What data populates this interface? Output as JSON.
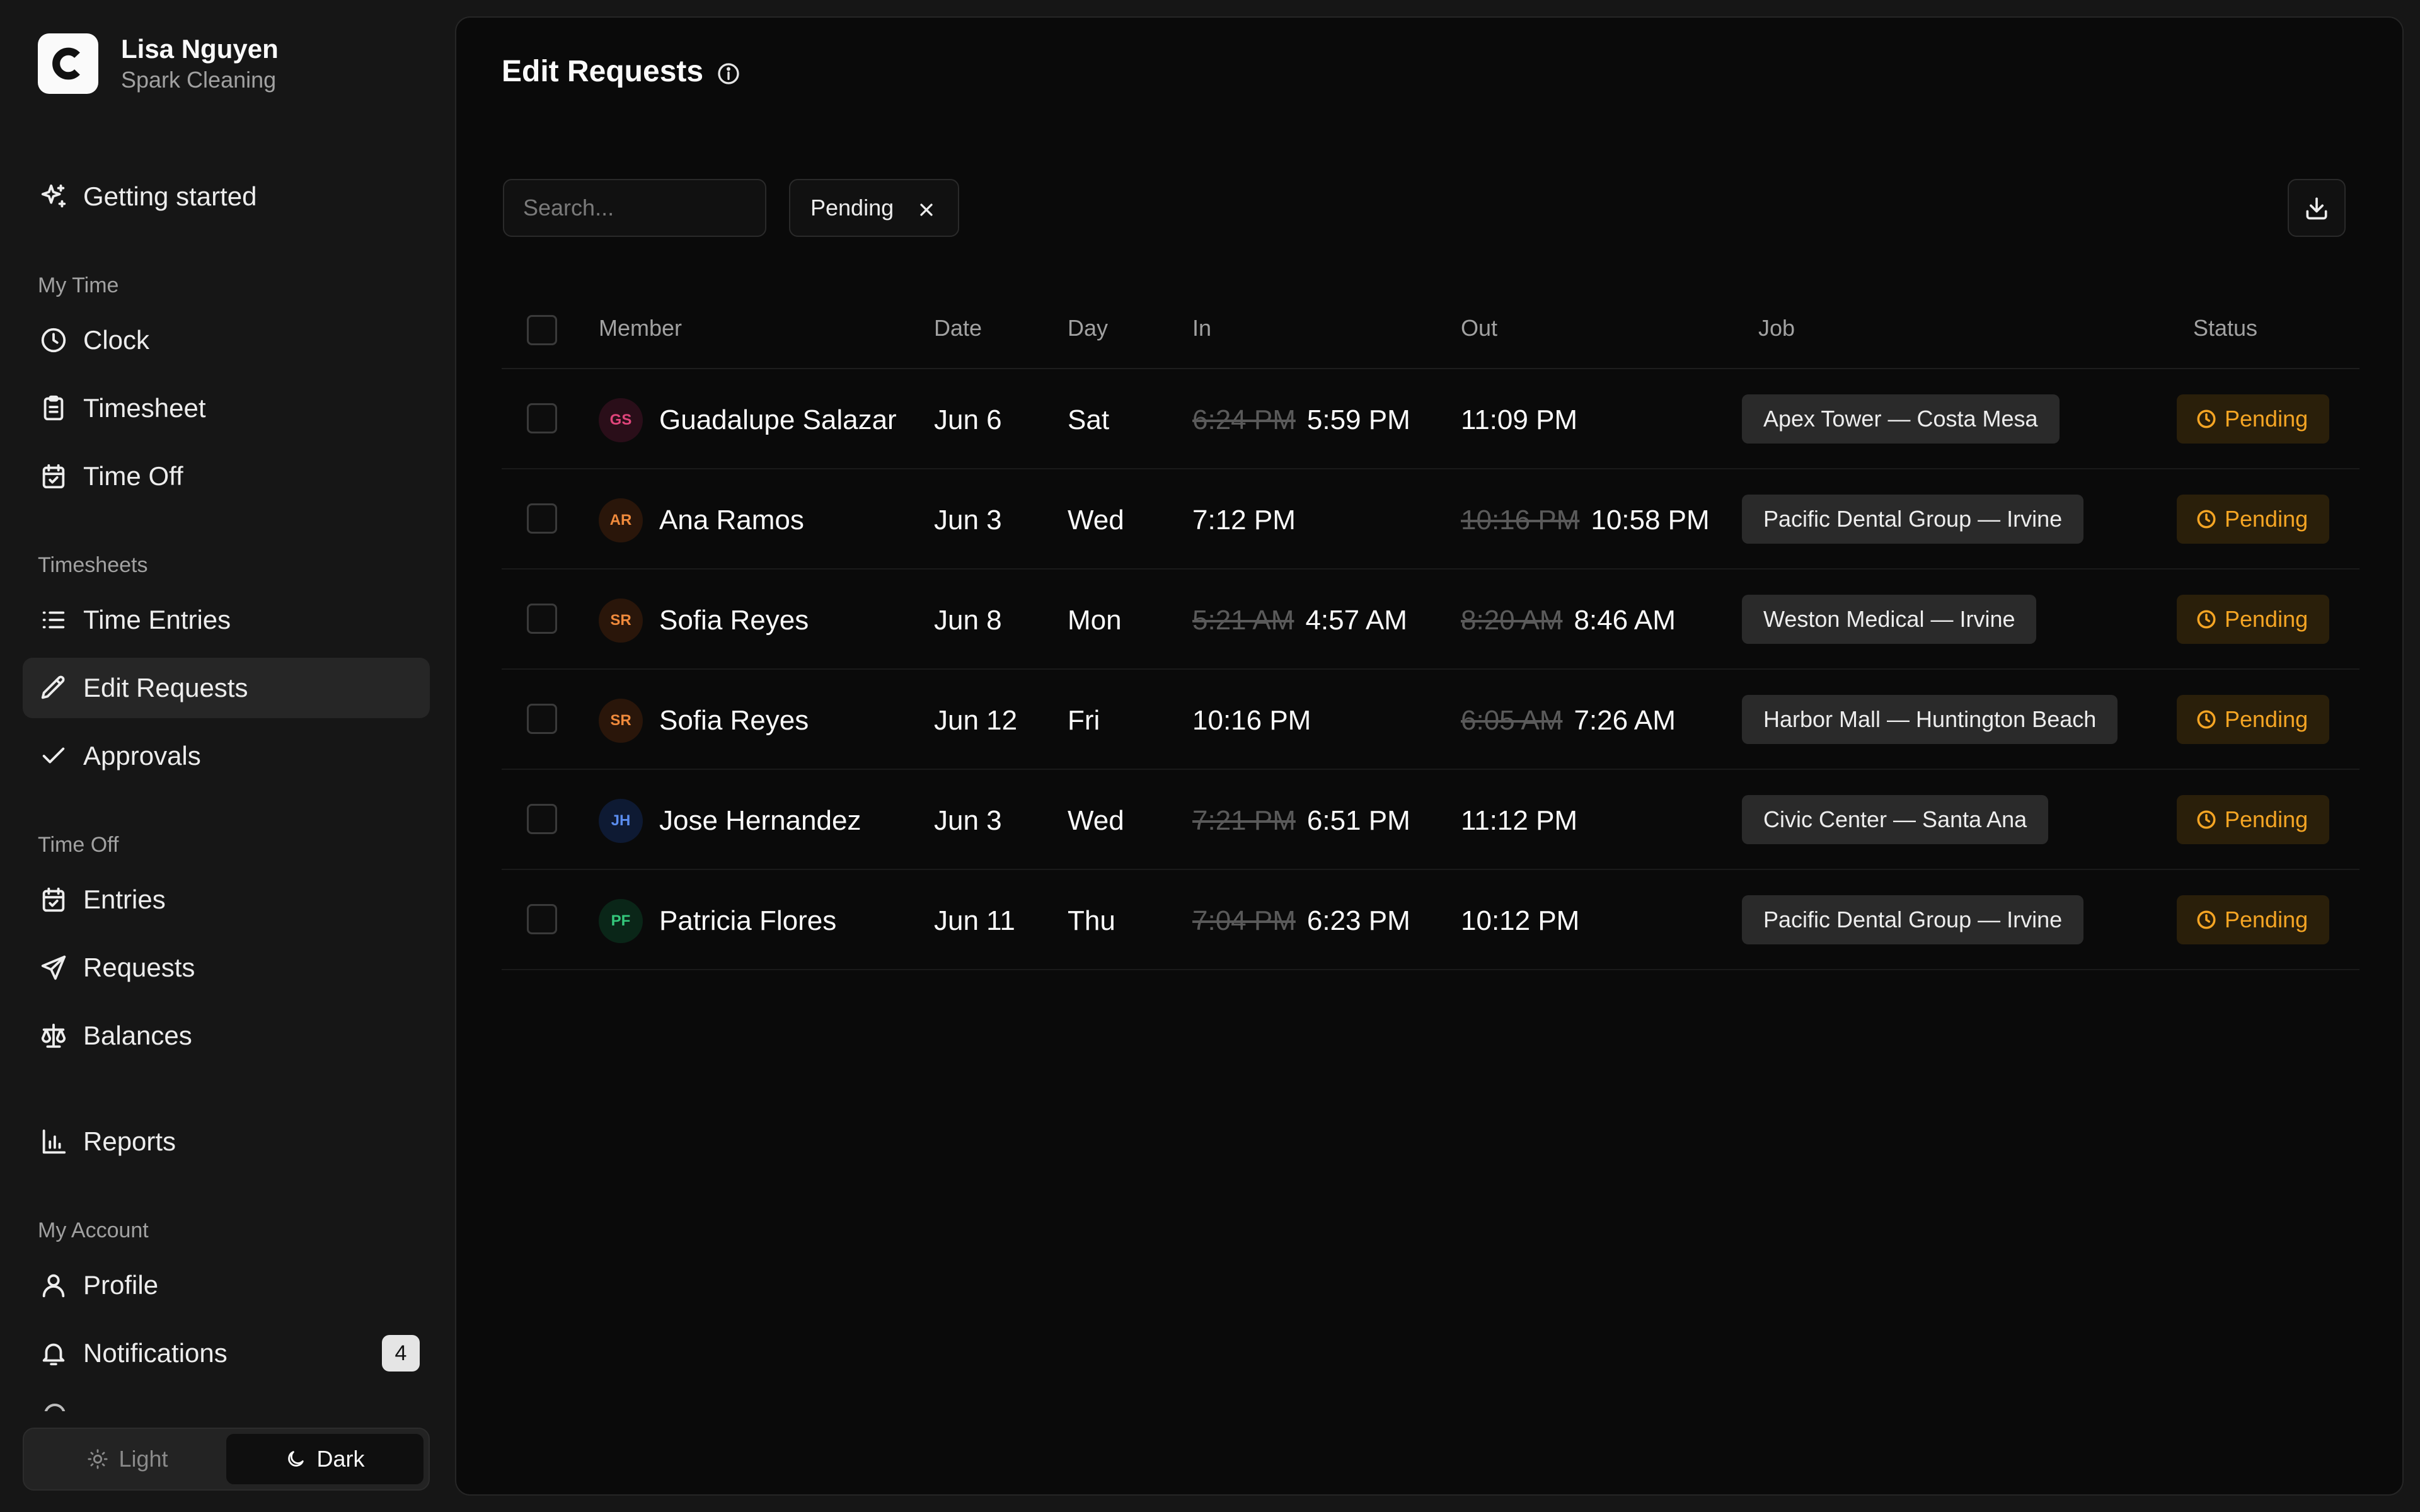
{
  "user": {
    "name": "Lisa Nguyen",
    "org": "Spark Cleaning"
  },
  "colors": {
    "accent_pending": "#f5a524",
    "background": "#0a0a0a",
    "sidebar": "#161616"
  },
  "nav": {
    "getting_started": "Getting started",
    "sections": {
      "my_time": "My Time",
      "timesheets": "Timesheets",
      "time_off": "Time Off",
      "my_account": "My Account"
    },
    "items": {
      "clock": "Clock",
      "timesheet": "Timesheet",
      "time_off": "Time Off",
      "time_entries": "Time Entries",
      "edit_requests": "Edit Requests",
      "approvals": "Approvals",
      "entries": "Entries",
      "requests": "Requests",
      "balances": "Balances",
      "reports": "Reports",
      "profile": "Profile",
      "notifications": "Notifications"
    },
    "notifications_count": "4",
    "active": "edit_requests"
  },
  "theme": {
    "light": "Light",
    "dark": "Dark",
    "selected": "dark"
  },
  "page": {
    "title": "Edit Requests"
  },
  "toolbar": {
    "search_placeholder": "Search...",
    "filter_label": "Pending"
  },
  "table": {
    "headers": {
      "member": "Member",
      "date": "Date",
      "day": "Day",
      "in": "In",
      "out": "Out",
      "job": "Job",
      "status": "Status"
    },
    "rows": [
      {
        "initials": "GS",
        "avatar_color": "#e0457b",
        "avatar_bg": "#2a0e19",
        "member": "Guadalupe Salazar",
        "date": "Jun 6",
        "day": "Sat",
        "in_old": "6:24 PM",
        "in": "5:59 PM",
        "out_old": "",
        "out": "11:09 PM",
        "job": "Apex Tower — Costa Mesa",
        "status": "Pending"
      },
      {
        "initials": "AR",
        "avatar_color": "#f08a3c",
        "avatar_bg": "#2a160a",
        "member": "Ana Ramos",
        "date": "Jun 3",
        "day": "Wed",
        "in_old": "",
        "in": "7:12 PM",
        "out_old": "10:16 PM",
        "out": "10:58 PM",
        "job": "Pacific Dental Group — Irvine",
        "status": "Pending"
      },
      {
        "initials": "SR",
        "avatar_color": "#f08a3c",
        "avatar_bg": "#2a160a",
        "member": "Sofia Reyes",
        "date": "Jun 8",
        "day": "Mon",
        "in_old": "5:21 AM",
        "in": "4:57 AM",
        "out_old": "8:20 AM",
        "out": "8:46 AM",
        "job": "Weston Medical — Irvine",
        "status": "Pending"
      },
      {
        "initials": "SR",
        "avatar_color": "#f08a3c",
        "avatar_bg": "#2a160a",
        "member": "Sofia Reyes",
        "date": "Jun 12",
        "day": "Fri",
        "in_old": "",
        "in": "10:16 PM",
        "out_old": "6:05 AM",
        "out": "7:26 AM",
        "job": "Harbor Mall — Huntington Beach",
        "status": "Pending"
      },
      {
        "initials": "JH",
        "avatar_color": "#5b8def",
        "avatar_bg": "#0e1a33",
        "member": "Jose Hernandez",
        "date": "Jun 3",
        "day": "Wed",
        "in_old": "7:21 PM",
        "in": "6:51 PM",
        "out_old": "",
        "out": "11:12 PM",
        "job": "Civic Center — Santa Ana",
        "status": "Pending"
      },
      {
        "initials": "PF",
        "avatar_color": "#34c77b",
        "avatar_bg": "#0a2618",
        "member": "Patricia Flores",
        "date": "Jun 11",
        "day": "Thu",
        "in_old": "7:04 PM",
        "in": "6:23 PM",
        "out_old": "",
        "out": "10:12 PM",
        "job": "Pacific Dental Group — Irvine",
        "status": "Pending"
      }
    ]
  }
}
